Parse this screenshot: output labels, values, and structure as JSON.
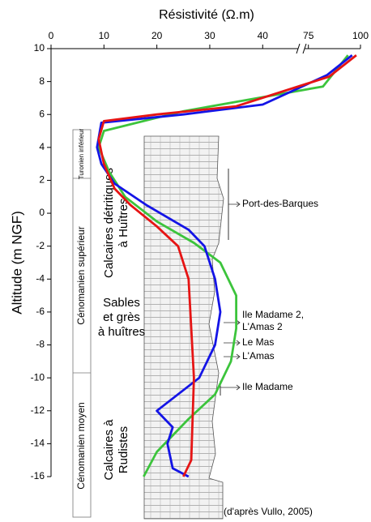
{
  "chart_data": {
    "type": "line",
    "x_label": "Résistivité (Ω.m)",
    "y_label": "Altitude (m NGF)",
    "xlim": [
      0,
      100
    ],
    "xticks": [
      0,
      10,
      20,
      30,
      40,
      75,
      100
    ],
    "x_break": [
      47,
      72
    ],
    "ylim": [
      -16,
      10
    ],
    "yticks": [
      -16,
      -14,
      -12,
      -10,
      -8,
      -6,
      -4,
      -2,
      0,
      2,
      4,
      6,
      8,
      10
    ],
    "series": [
      {
        "color": "#3cc43c",
        "x": [
          94,
          82,
          25,
          10,
          9,
          11,
          14,
          20,
          27,
          32,
          35,
          35,
          34,
          31,
          26,
          20,
          17.5
        ],
        "y": [
          9.6,
          7.7,
          6.2,
          5,
          4,
          2.5,
          1,
          -0.5,
          -1.8,
          -3,
          -5,
          -7,
          -9,
          -11,
          -12.5,
          -14.5,
          -16
        ]
      },
      {
        "color": "#1414e6",
        "x": [
          96,
          84,
          40,
          25,
          9.5,
          8.7,
          9.5,
          12,
          18,
          26,
          29,
          31,
          32,
          31,
          28,
          20,
          23,
          22,
          23,
          26
        ],
        "y": [
          9.6,
          8.4,
          6.6,
          6,
          5.5,
          4,
          3,
          1.8,
          0.5,
          -1,
          -2,
          -4,
          -6,
          -8,
          -10,
          -12,
          -13,
          -14,
          -15.5,
          -16
        ]
      },
      {
        "color": "#e61414",
        "x": [
          98,
          85,
          35,
          20,
          10,
          9,
          10,
          12,
          15,
          20,
          24,
          26,
          27,
          26.5,
          25
        ],
        "y": [
          9.6,
          8.3,
          6.5,
          6,
          5.6,
          4.5,
          3,
          1.5,
          0.5,
          -0.8,
          -2,
          -4,
          -10,
          -15,
          -16
        ]
      }
    ],
    "stages": [
      "Turonien inférieur",
      "Cénomanien supérieur",
      "Cénomanien moyen"
    ],
    "lithology": {
      "upper": [
        "Calcaires détritiques",
        "à Huîtres"
      ],
      "middle": [
        "Sables",
        "et grès",
        "à huîtres"
      ],
      "lower": [
        "Calcaires à",
        "Rudistes"
      ]
    },
    "sites": [
      "Port-des-Barques",
      "Ile Madame 2,",
      "L'Amas 2",
      "Le Mas",
      "L'Amas",
      "Ile Madame"
    ],
    "source": "(d'après Vullo, 2005)"
  }
}
